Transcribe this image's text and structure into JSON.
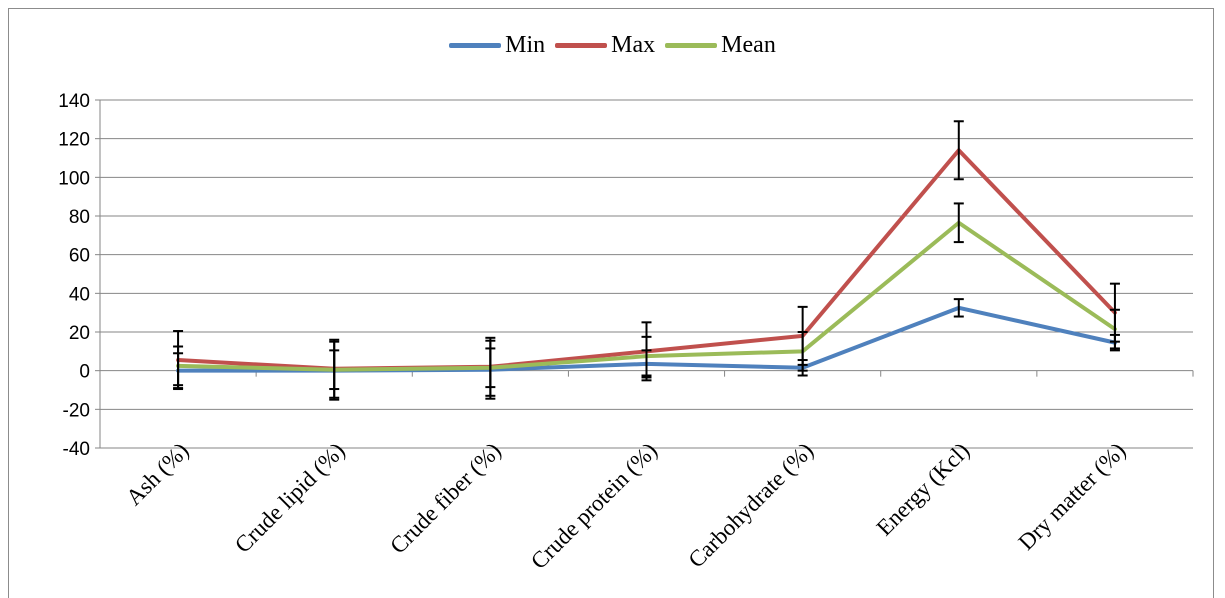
{
  "chart_data": {
    "type": "line",
    "categories": [
      "Ash (%)",
      "Crude lipid (%)",
      "Crude fiber (%)",
      "Crude protein (%)",
      "Carbohydrate (%)",
      "Energy (Kcl)",
      "Dry matter (%)"
    ],
    "series": [
      {
        "name": "Min",
        "color": "#4f81bd",
        "values": [
          0,
          0,
          0.5,
          3.5,
          1.5,
          32.5,
          14.5
        ],
        "error": [
          9,
          15,
          15,
          7,
          4,
          4.5,
          4
        ]
      },
      {
        "name": "Max",
        "color": "#c0504d",
        "values": [
          5.5,
          1,
          2,
          10,
          18,
          114,
          30
        ],
        "error": [
          15,
          15,
          15,
          15,
          15,
          15,
          15
        ]
      },
      {
        "name": "Mean",
        "color": "#9bbb59",
        "values": [
          2.5,
          0.5,
          1.5,
          7.5,
          10,
          76.5,
          21.5
        ],
        "error": [
          10,
          10,
          10,
          10,
          10,
          10,
          10
        ]
      }
    ],
    "ylim": [
      -40,
      140
    ],
    "yticks": [
      -40,
      -20,
      0,
      20,
      40,
      60,
      80,
      100,
      120,
      140
    ],
    "grid": true,
    "legend_position": "top",
    "title": "",
    "xlabel": "",
    "ylabel": ""
  }
}
